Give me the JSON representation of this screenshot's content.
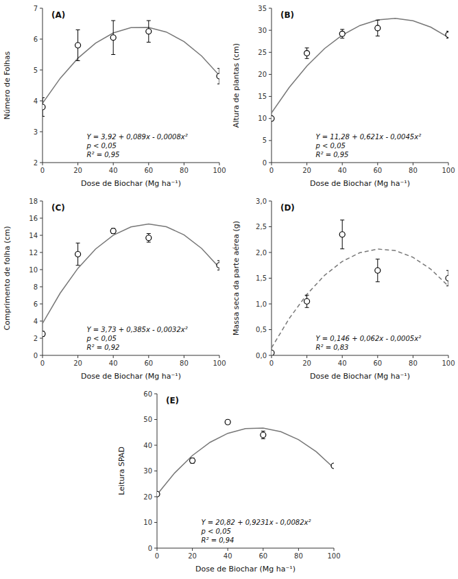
{
  "chart_data": [
    {
      "type": "scatter",
      "title": "(A)",
      "x_label": "Dose de Biochar (Mg ha⁻¹)",
      "y_label": "Número de Folhas",
      "annotations": [
        "Y = 3,92 + 0,089x - 0,0008x²",
        "p < 0,05",
        "R² = 0,95"
      ],
      "xlim": [
        0,
        100
      ],
      "xticks": [
        0,
        20,
        40,
        60,
        80,
        100
      ],
      "ylim": [
        2,
        7
      ],
      "yticks": [
        2,
        3,
        4,
        5,
        6,
        7
      ],
      "grid": false,
      "series": [
        {
          "type": "scatter",
          "marker": "circle",
          "color": "#000000",
          "x": [
            0,
            20,
            40,
            60,
            100
          ],
          "values": [
            3.8,
            5.8,
            6.05,
            6.25,
            4.8
          ],
          "errors": [
            0.3,
            0.5,
            0.55,
            0.35,
            0.25
          ]
        },
        {
          "type": "line",
          "line_style": "solid",
          "color": "#777777",
          "x": [
            0,
            10,
            20,
            30,
            40,
            50,
            60,
            70,
            80,
            90,
            100
          ],
          "values": [
            3.92,
            4.73,
            5.38,
            5.87,
            6.2,
            6.37,
            6.38,
            6.23,
            5.92,
            5.45,
            4.82
          ]
        }
      ]
    },
    {
      "type": "scatter",
      "title": "(B)",
      "x_label": "Dose de Biochar (Mg ha⁻¹)",
      "y_label": "Altura de plantas (cm)",
      "annotations": [
        "Y = 11,28 + 0,621x - 0,0045x²",
        "p < 0,05",
        "R² = 0,95"
      ],
      "xlim": [
        0,
        100
      ],
      "xticks": [
        0,
        20,
        40,
        60,
        80,
        100
      ],
      "ylim": [
        0,
        35
      ],
      "yticks": [
        0,
        5,
        10,
        15,
        20,
        25,
        30,
        35
      ],
      "grid": false,
      "series": [
        {
          "type": "scatter",
          "marker": "circle",
          "color": "#000000",
          "x": [
            0,
            20,
            40,
            60,
            100
          ],
          "values": [
            10.0,
            24.8,
            29.2,
            30.5,
            29.0
          ],
          "errors": [
            0.5,
            1.2,
            1.0,
            1.8,
            0.8
          ]
        },
        {
          "type": "line",
          "line_style": "solid",
          "color": "#777777",
          "x": [
            0,
            10,
            20,
            30,
            40,
            50,
            60,
            70,
            80,
            90,
            100
          ],
          "values": [
            11.28,
            17.04,
            21.9,
            25.86,
            28.92,
            31.08,
            32.34,
            32.7,
            32.16,
            30.72,
            28.38
          ]
        }
      ]
    },
    {
      "type": "scatter",
      "title": "(C)",
      "x_label": "Dose de Biochar (Mg ha⁻¹)",
      "y_label": "Comprimento de folha (cm)",
      "annotations": [
        "Y = 3,73 + 0,385x - 0,0032x²",
        "p < 0,05",
        "R² = 0,92"
      ],
      "xlim": [
        0,
        100
      ],
      "xticks": [
        0,
        20,
        40,
        60,
        80,
        100
      ],
      "ylim": [
        0,
        18
      ],
      "yticks": [
        0,
        2,
        4,
        6,
        8,
        10,
        12,
        14,
        16,
        18
      ],
      "grid": false,
      "series": [
        {
          "type": "scatter",
          "marker": "circle",
          "color": "#000000",
          "x": [
            0,
            20,
            40,
            60,
            100
          ],
          "values": [
            2.5,
            11.8,
            14.5,
            13.7,
            10.5
          ],
          "errors": [
            0.3,
            1.3,
            0.3,
            0.5,
            0.55
          ]
        },
        {
          "type": "line",
          "line_style": "solid",
          "color": "#777777",
          "x": [
            0,
            10,
            20,
            30,
            40,
            50,
            60,
            70,
            80,
            90,
            100
          ],
          "values": [
            3.73,
            7.26,
            10.15,
            12.4,
            14.01,
            14.98,
            15.31,
            15.0,
            14.05,
            12.46,
            10.23
          ]
        }
      ]
    },
    {
      "type": "scatter",
      "title": "(D)",
      "x_label": "Dose de Biochar (Mg ha⁻¹)",
      "y_label": "Massa seca da parte aérea (g)",
      "annotations": [
        "Y = 0,146 + 0,062x - 0,0005x²",
        "R² = 0,83"
      ],
      "xlim": [
        0,
        100
      ],
      "xticks": [
        0,
        20,
        40,
        60,
        80,
        100
      ],
      "ylim": [
        0.0,
        3.0
      ],
      "yticks": [
        {
          "value": 0.0,
          "label": "0,0"
        },
        {
          "value": 0.5,
          "label": "0,5"
        },
        {
          "value": 1.0,
          "label": "1,0"
        },
        {
          "value": 1.5,
          "label": "1,5"
        },
        {
          "value": 2.0,
          "label": "2,0"
        },
        {
          "value": 2.5,
          "label": "2,5"
        },
        {
          "value": 3.0,
          "label": "3,0"
        }
      ],
      "grid": false,
      "series": [
        {
          "type": "scatter",
          "marker": "circle",
          "color": "#000000",
          "x": [
            0,
            20,
            40,
            60,
            100
          ],
          "values": [
            0.05,
            1.05,
            2.35,
            1.65,
            1.5
          ],
          "errors": [
            0.03,
            0.12,
            0.28,
            0.22,
            0.15
          ]
        },
        {
          "type": "line",
          "line_style": "dashed",
          "color": "#777777",
          "x": [
            0,
            10,
            20,
            30,
            40,
            50,
            60,
            70,
            80,
            90,
            100
          ],
          "values": [
            0.146,
            0.716,
            1.186,
            1.556,
            1.826,
            1.996,
            2.066,
            2.036,
            1.906,
            1.676,
            1.346
          ]
        }
      ]
    },
    {
      "type": "scatter",
      "title": "(E)",
      "x_label": "Dose de Biochar (Mg ha⁻¹)",
      "y_label": "Leitura SPAD",
      "annotations": [
        "Y = 20,82 + 0,9231x - 0,0082x²",
        "p < 0,05",
        "R² = 0,94"
      ],
      "xlim": [
        0,
        100
      ],
      "xticks": [
        0,
        20,
        40,
        60,
        80,
        100
      ],
      "ylim": [
        0,
        60
      ],
      "yticks": [
        0,
        10,
        20,
        30,
        40,
        50,
        60
      ],
      "grid": false,
      "series": [
        {
          "type": "scatter",
          "marker": "circle",
          "color": "#000000",
          "x": [
            0,
            20,
            40,
            60,
            100
          ],
          "values": [
            21.0,
            34.0,
            49.0,
            44.0,
            32.0
          ],
          "errors": [
            0.5,
            1.0,
            0.8,
            1.5,
            0.8
          ]
        },
        {
          "type": "line",
          "line_style": "solid",
          "color": "#777777",
          "x": [
            0,
            10,
            20,
            30,
            40,
            50,
            60,
            70,
            80,
            90,
            100
          ],
          "values": [
            20.82,
            29.231,
            36.002,
            41.133,
            44.624,
            46.475,
            46.686,
            45.257,
            42.188,
            37.479,
            31.13
          ]
        }
      ]
    }
  ]
}
